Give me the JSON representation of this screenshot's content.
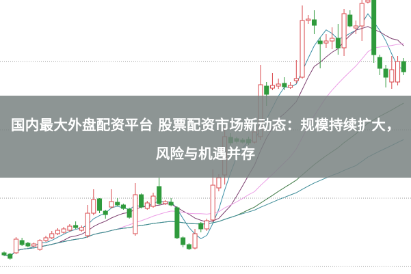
{
  "title": "国内最大外盘配资平台 股票配资市场新动态：规模持续扩大，风险与机遇并存",
  "chart_data": {
    "type": "candlestick",
    "grid": "horizontal dotted",
    "ylim": [
      0,
      401
    ],
    "up_color": "#d9474b",
    "down_color": "#2f9a3c",
    "ma_colors": [
      "#3c8fa6",
      "#7b3d6e",
      "#ec9ee6",
      "#3f7a46",
      "#3a8a96"
    ],
    "ohlc_fields": [
      "open",
      "high",
      "low",
      "close"
    ],
    "ohlc": [
      [
        30,
        32,
        25,
        27
      ],
      [
        28,
        30,
        20,
        22
      ],
      [
        30,
        53,
        28,
        50
      ],
      [
        48,
        52,
        40,
        42
      ],
      [
        44,
        46,
        38,
        40
      ],
      [
        40,
        45,
        39,
        43
      ],
      [
        35,
        50,
        33,
        48
      ],
      [
        48,
        55,
        46,
        52
      ],
      [
        52,
        62,
        50,
        58
      ],
      [
        58,
        66,
        56,
        63
      ],
      [
        60,
        68,
        58,
        65
      ],
      [
        63,
        72,
        61,
        69
      ],
      [
        70,
        76,
        65,
        67
      ],
      [
        63,
        70,
        61,
        67
      ],
      [
        55,
        100,
        52,
        88
      ],
      [
        88,
        123,
        85,
        108
      ],
      [
        109,
        110,
        88,
        92
      ],
      [
        91,
        93,
        80,
        86
      ],
      [
        97,
        123,
        95,
        105
      ],
      [
        104,
        110,
        98,
        100
      ],
      [
        100,
        102,
        93,
        95
      ],
      [
        94,
        96,
        80,
        82
      ],
      [
        58,
        132,
        55,
        115
      ],
      [
        115,
        117,
        95,
        97
      ],
      [
        95,
        106,
        93,
        103
      ],
      [
        98,
        118,
        96,
        113
      ],
      [
        127,
        140,
        100,
        102
      ],
      [
        102,
        107,
        100,
        105
      ],
      [
        104,
        110,
        98,
        100
      ],
      [
        96,
        98,
        50,
        52
      ],
      [
        52,
        54,
        38,
        42
      ],
      [
        42,
        44,
        34,
        36
      ],
      [
        37,
        65,
        35,
        58
      ],
      [
        73,
        75,
        60,
        65
      ],
      [
        65,
        80,
        62,
        77
      ],
      [
        78,
        152,
        75,
        129
      ],
      [
        125,
        145,
        120,
        140
      ],
      [
        144,
        214,
        130,
        200
      ],
      [
        199,
        205,
        188,
        191
      ],
      [
        197,
        200,
        190,
        193
      ],
      [
        195,
        198,
        190,
        192
      ],
      [
        196,
        200,
        188,
        191
      ],
      [
        192,
        215,
        190,
        207
      ],
      [
        200,
        305,
        195,
        276
      ],
      [
        274,
        280,
        245,
        262
      ],
      [
        271,
        293,
        268,
        275
      ],
      [
        274,
        285,
        270,
        277
      ],
      [
        278,
        287,
        268,
        273
      ],
      [
        272,
        280,
        270,
        275
      ],
      [
        282,
        312,
        278,
        285
      ],
      [
        287,
        392,
        285,
        370
      ],
      [
        370,
        378,
        365,
        372
      ],
      [
        371,
        385,
        350,
        363
      ],
      [
        340,
        345,
        300,
        336
      ],
      [
        337,
        350,
        330,
        340
      ],
      [
        340,
        360,
        328,
        344
      ],
      [
        344,
        365,
        320,
        330
      ],
      [
        330,
        387,
        318,
        380
      ],
      [
        378,
        385,
        360,
        362
      ],
      [
        359,
        370,
        350,
        362
      ],
      [
        362,
        400,
        340,
        395
      ],
      [
        397,
        401,
        395,
        400
      ],
      [
        401,
        401,
        308,
        320
      ],
      [
        316,
        320,
        290,
        300
      ],
      [
        299,
        305,
        272,
        287
      ],
      [
        280,
        318,
        270,
        298
      ],
      [
        280,
        318,
        275,
        310
      ],
      [
        310,
        315,
        290,
        295
      ]
    ],
    "moving_average_periods": [
      5,
      10,
      20,
      40,
      60
    ]
  }
}
